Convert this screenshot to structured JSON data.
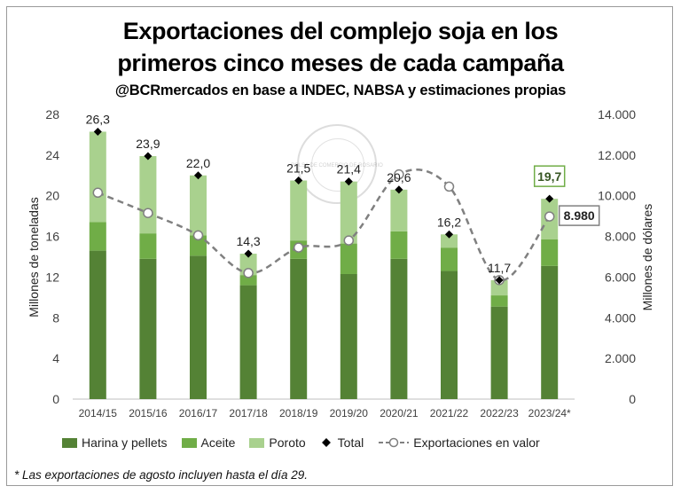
{
  "header": {
    "title_line1": "Exportaciones del complejo soja en los",
    "title_line2": "primeros cinco meses de cada campaña",
    "subtitle": "@BCRmercados en base a INDEC, NABSA y estimaciones propias"
  },
  "watermark": {
    "text": "BOLSA DE COMERCIO DE ROSARIO"
  },
  "footnote": "* Las exportaciones de agosto incluyen hasta el día 29.",
  "colors": {
    "harina": "#548235",
    "aceite": "#70AD47",
    "poroto": "#A9D18E",
    "total": "#000000",
    "valor": "#808080",
    "highlight_box": "#70AD47"
  },
  "chart_data": {
    "type": "bar",
    "stacked": true,
    "categories": [
      "2014/15",
      "2015/16",
      "2016/17",
      "2017/18",
      "2018/19",
      "2019/20",
      "2020/21",
      "2021/22",
      "2022/23",
      "2023/24*"
    ],
    "series": [
      {
        "name": "Harina y pellets",
        "values": [
          14.6,
          13.8,
          14.1,
          11.2,
          13.8,
          12.3,
          13.8,
          12.6,
          9.1,
          13.1
        ]
      },
      {
        "name": "Aceite",
        "values": [
          2.8,
          2.5,
          2.0,
          1.0,
          1.8,
          3.0,
          2.7,
          2.3,
          1.1,
          2.6
        ]
      },
      {
        "name": "Poroto",
        "values": [
          8.9,
          7.6,
          5.9,
          2.1,
          5.9,
          6.1,
          4.1,
          1.3,
          1.5,
          4.0
        ]
      }
    ],
    "totals": [
      26.3,
      23.9,
      22.0,
      14.3,
      21.5,
      21.4,
      20.6,
      16.2,
      11.7,
      19.7
    ],
    "total_labels": [
      "26,3",
      "23,9",
      "22,0",
      "14,3",
      "21,5",
      "21,4",
      "20,6",
      "16,2",
      "11,7",
      "19,7"
    ],
    "line": {
      "name": "Exportaciones en valor",
      "axis": "secondary",
      "values": [
        10150,
        9150,
        8050,
        6200,
        7450,
        7800,
        11050,
        10450,
        5850,
        8980
      ],
      "highlight_label": "8.980"
    },
    "title": "Exportaciones del complejo soja en los primeros cinco meses de cada campaña",
    "ylabel": "Millones de toneladas",
    "y2label": "Millones de dólares",
    "ylim": [
      0,
      28
    ],
    "y2lim": [
      0,
      14000
    ],
    "yticks": [
      "0",
      "4",
      "8",
      "12",
      "16",
      "20",
      "24",
      "28"
    ],
    "y2ticks": [
      "0",
      "2.000",
      "4.000",
      "6.000",
      "8.000",
      "10.000",
      "12.000",
      "14.000"
    ],
    "legend": [
      "Harina y pellets",
      "Aceite",
      "Poroto",
      "Total",
      "Exportaciones en valor"
    ],
    "legend_position": "bottom"
  }
}
